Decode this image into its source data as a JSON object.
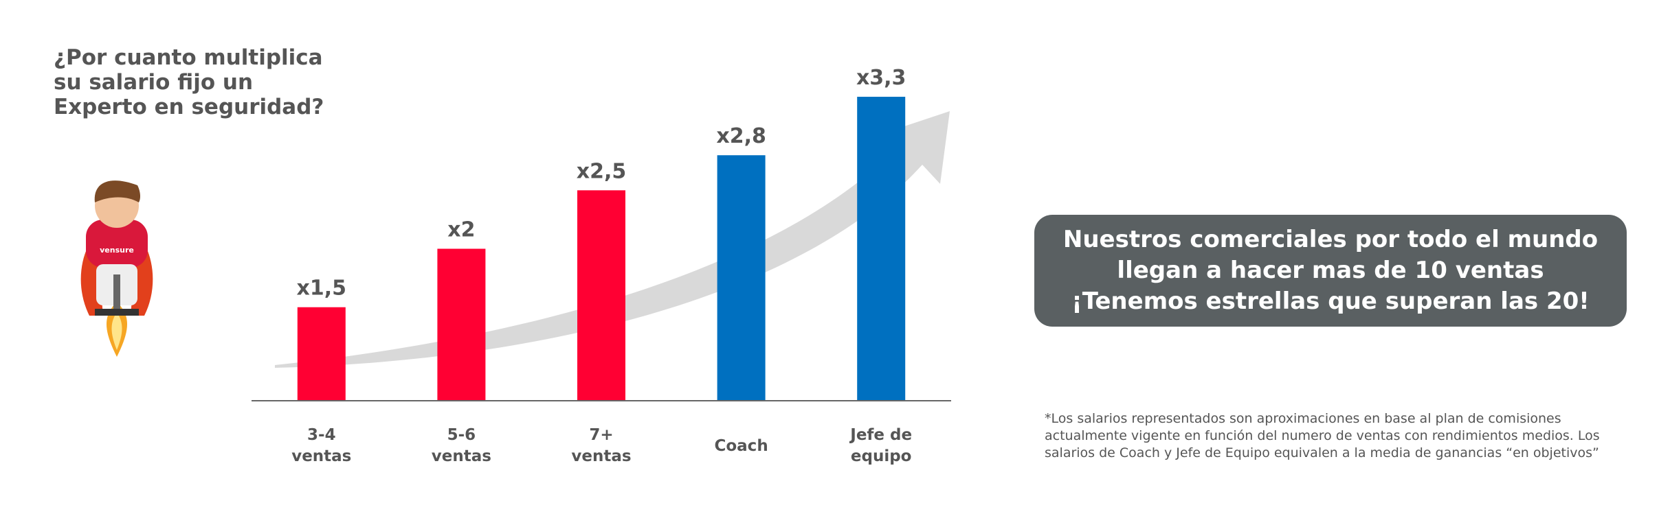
{
  "chart_data": {
    "type": "bar",
    "title": "¿Por cuanto multiplica su salario fijo un Experto en seguridad?",
    "categories": [
      "3-4 ventas",
      "5-6 ventas",
      "7+ ventas",
      "Coach",
      "Jefe de equipo"
    ],
    "values": [
      1.5,
      2,
      2.5,
      2.8,
      3.3
    ],
    "value_labels": [
      "x1,5",
      "x2",
      "x2,5",
      "x2,8",
      "x3,3"
    ],
    "colors": [
      "#ff0033",
      "#ff0033",
      "#ff0033",
      "#0070c0",
      "#0070c0"
    ],
    "ylim": [
      0.7,
      3.4
    ]
  },
  "mascot": {
    "label": "vensure"
  },
  "callout": [
    "Nuestros comerciales por todo el mundo llegan a hacer mas de 10 ventas",
    "¡Tenemos estrellas que superan las 20!"
  ],
  "footnote": "*Los salarios representados son aproximaciones en base al plan de comisiones actualmente vigente en función del numero de ventas con rendimientos medios. Los salarios de Coach y Jefe de Equipo equivalen a la media de ganancias “en objetivos”"
}
